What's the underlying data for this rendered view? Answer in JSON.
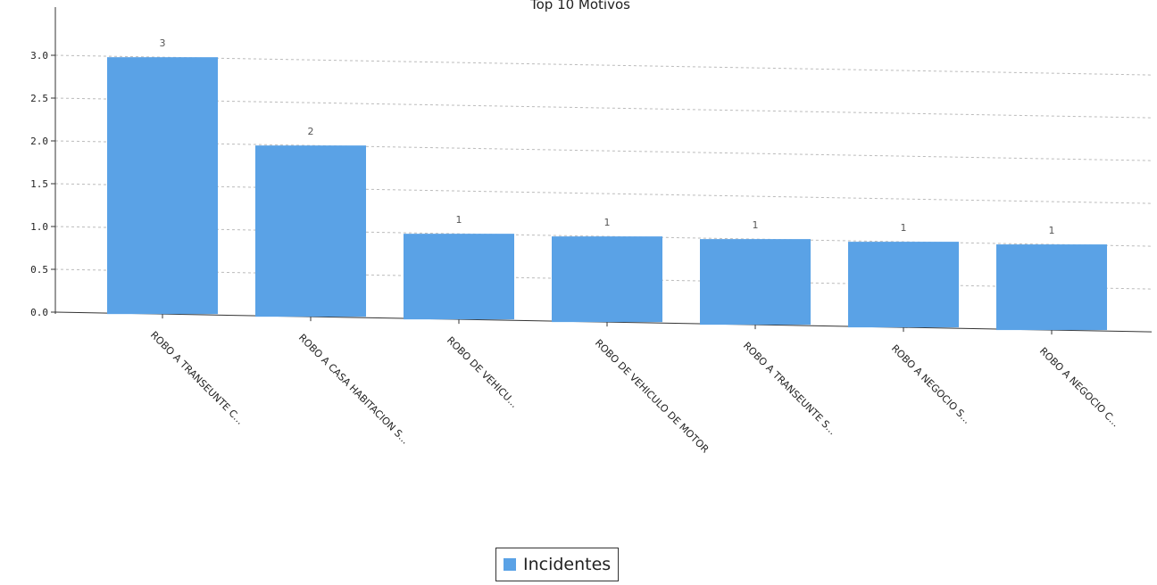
{
  "chart_data": {
    "type": "bar",
    "title": "Top 10 Motivos",
    "categories": [
      "ROBO A TRANSEUNTE C...",
      "ROBO A CASA HABITACION S...",
      "ROBO DE VEHICU...",
      "ROBO DE VEHICULO DE MOTOR",
      "ROBO A TRANSEUNTE S...",
      "ROBO A NEGOCIO S...",
      "ROBO A NEGOCIO C..."
    ],
    "series": [
      {
        "name": "Incidentes",
        "values": [
          3,
          2,
          1,
          1,
          1,
          1,
          1
        ],
        "color": "#5aa2e6"
      }
    ],
    "data_labels": [
      "3",
      "2",
      "1",
      "1",
      "1",
      "1",
      "1"
    ],
    "ylim": [
      0,
      3
    ],
    "yticks": [
      "0.0",
      "0.5",
      "1.0",
      "1.5",
      "2.0",
      "2.5",
      "3.0"
    ],
    "grid": true,
    "legend": "bottom-center"
  }
}
